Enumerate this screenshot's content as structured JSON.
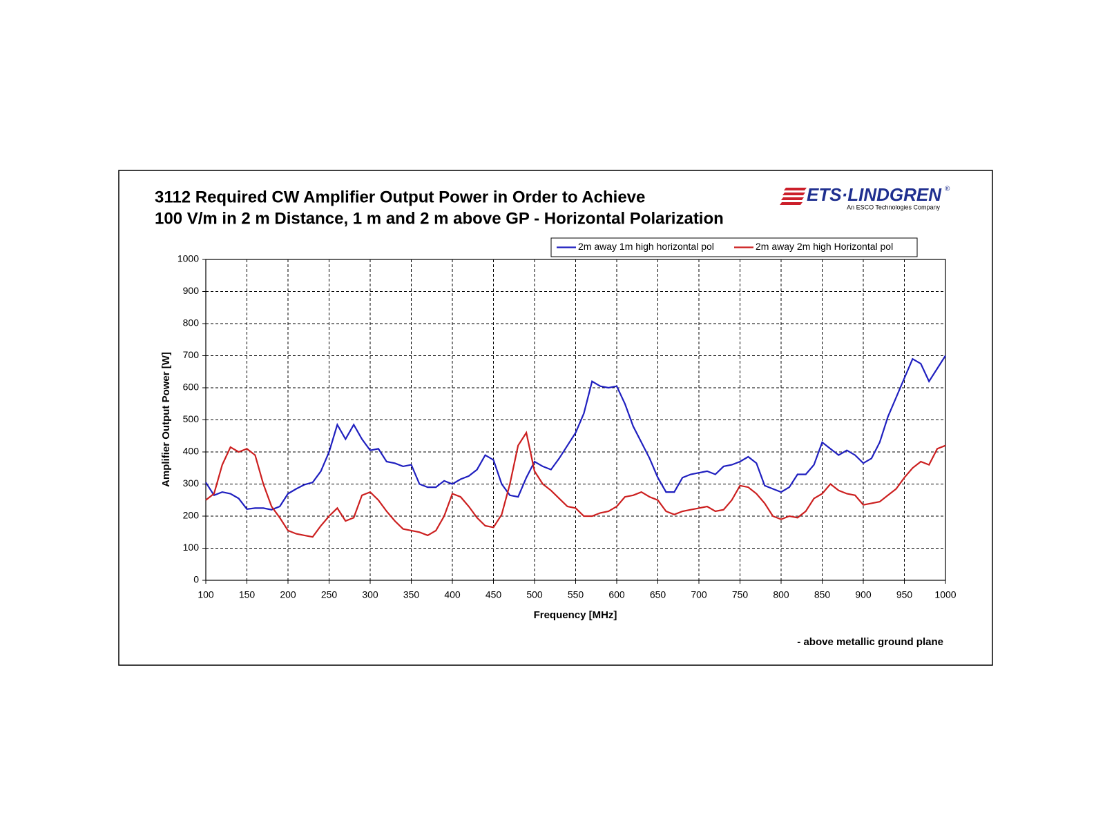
{
  "chart_data": {
    "type": "line",
    "title": [
      "3112 Required CW Amplifier Output Power in Order to Achieve",
      "100 V/m in 2 m Distance, 1 m and 2 m above GP - Horizontal Polarization"
    ],
    "logo": "ETS·LINDGREN",
    "logo_registered": "®",
    "logo_subtitle": "An ESCO Technologies Company",
    "x_label": "Frequency [MHz]",
    "y_label": "Amplifier Output Power [W]",
    "annotation": "- above metallic ground plane",
    "x": [
      100,
      110,
      120,
      130,
      140,
      150,
      160,
      170,
      180,
      190,
      200,
      210,
      220,
      230,
      240,
      250,
      260,
      270,
      280,
      290,
      300,
      310,
      320,
      330,
      340,
      350,
      360,
      370,
      380,
      390,
      400,
      410,
      420,
      430,
      440,
      450,
      460,
      470,
      480,
      490,
      500,
      510,
      520,
      530,
      540,
      550,
      560,
      570,
      580,
      590,
      600,
      610,
      620,
      630,
      640,
      650,
      660,
      670,
      680,
      690,
      700,
      710,
      720,
      730,
      740,
      750,
      760,
      770,
      780,
      790,
      800,
      810,
      820,
      830,
      840,
      850,
      860,
      870,
      880,
      890,
      900,
      910,
      920,
      930,
      940,
      950,
      960,
      970,
      980,
      990,
      1000
    ],
    "series": [
      {
        "name": "2m away 1m high horizontal pol",
        "color": "#1f1fbf",
        "values": [
          305,
          265,
          275,
          270,
          255,
          222,
          225,
          225,
          220,
          230,
          270,
          285,
          298,
          305,
          340,
          400,
          485,
          440,
          485,
          440,
          405,
          410,
          370,
          365,
          355,
          360,
          300,
          290,
          290,
          310,
          300,
          315,
          325,
          345,
          390,
          375,
          300,
          265,
          260,
          320,
          370,
          355,
          345,
          380,
          420,
          460,
          520,
          620,
          605,
          600,
          605,
          550,
          480,
          430,
          380,
          320,
          275,
          275,
          320,
          330,
          335,
          340,
          330,
          355,
          360,
          370,
          385,
          365,
          295,
          285,
          275,
          290,
          330,
          330,
          360,
          430,
          410,
          390,
          405,
          390,
          365,
          380,
          430,
          510,
          570,
          630,
          690,
          675,
          620,
          660,
          700
        ]
      },
      {
        "name": "2m away 2m high Horizontal pol",
        "color": "#cc1f1f",
        "values": [
          250,
          270,
          360,
          415,
          400,
          410,
          390,
          300,
          230,
          195,
          155,
          145,
          140,
          135,
          170,
          200,
          225,
          185,
          195,
          265,
          275,
          250,
          215,
          185,
          160,
          155,
          150,
          140,
          155,
          200,
          270,
          260,
          230,
          195,
          170,
          165,
          205,
          300,
          420,
          460,
          340,
          300,
          280,
          255,
          230,
          225,
          200,
          200,
          210,
          215,
          230,
          260,
          265,
          275,
          260,
          250,
          215,
          205,
          215,
          220,
          225,
          230,
          215,
          220,
          250,
          295,
          290,
          270,
          240,
          200,
          190,
          200,
          195,
          215,
          255,
          270,
          300,
          280,
          270,
          265,
          235,
          240,
          245,
          265,
          285,
          320,
          350,
          370,
          360,
          410,
          420
        ]
      }
    ],
    "xlim": [
      100,
      1000
    ],
    "xticks": [
      100,
      150,
      200,
      250,
      300,
      350,
      400,
      450,
      500,
      550,
      600,
      650,
      700,
      750,
      800,
      850,
      900,
      950,
      1000
    ],
    "ylim": [
      0,
      1000
    ],
    "yticks": [
      0,
      100,
      200,
      300,
      400,
      500,
      600,
      700,
      800,
      900,
      1000
    ],
    "grid": true,
    "legend": "top-right"
  }
}
